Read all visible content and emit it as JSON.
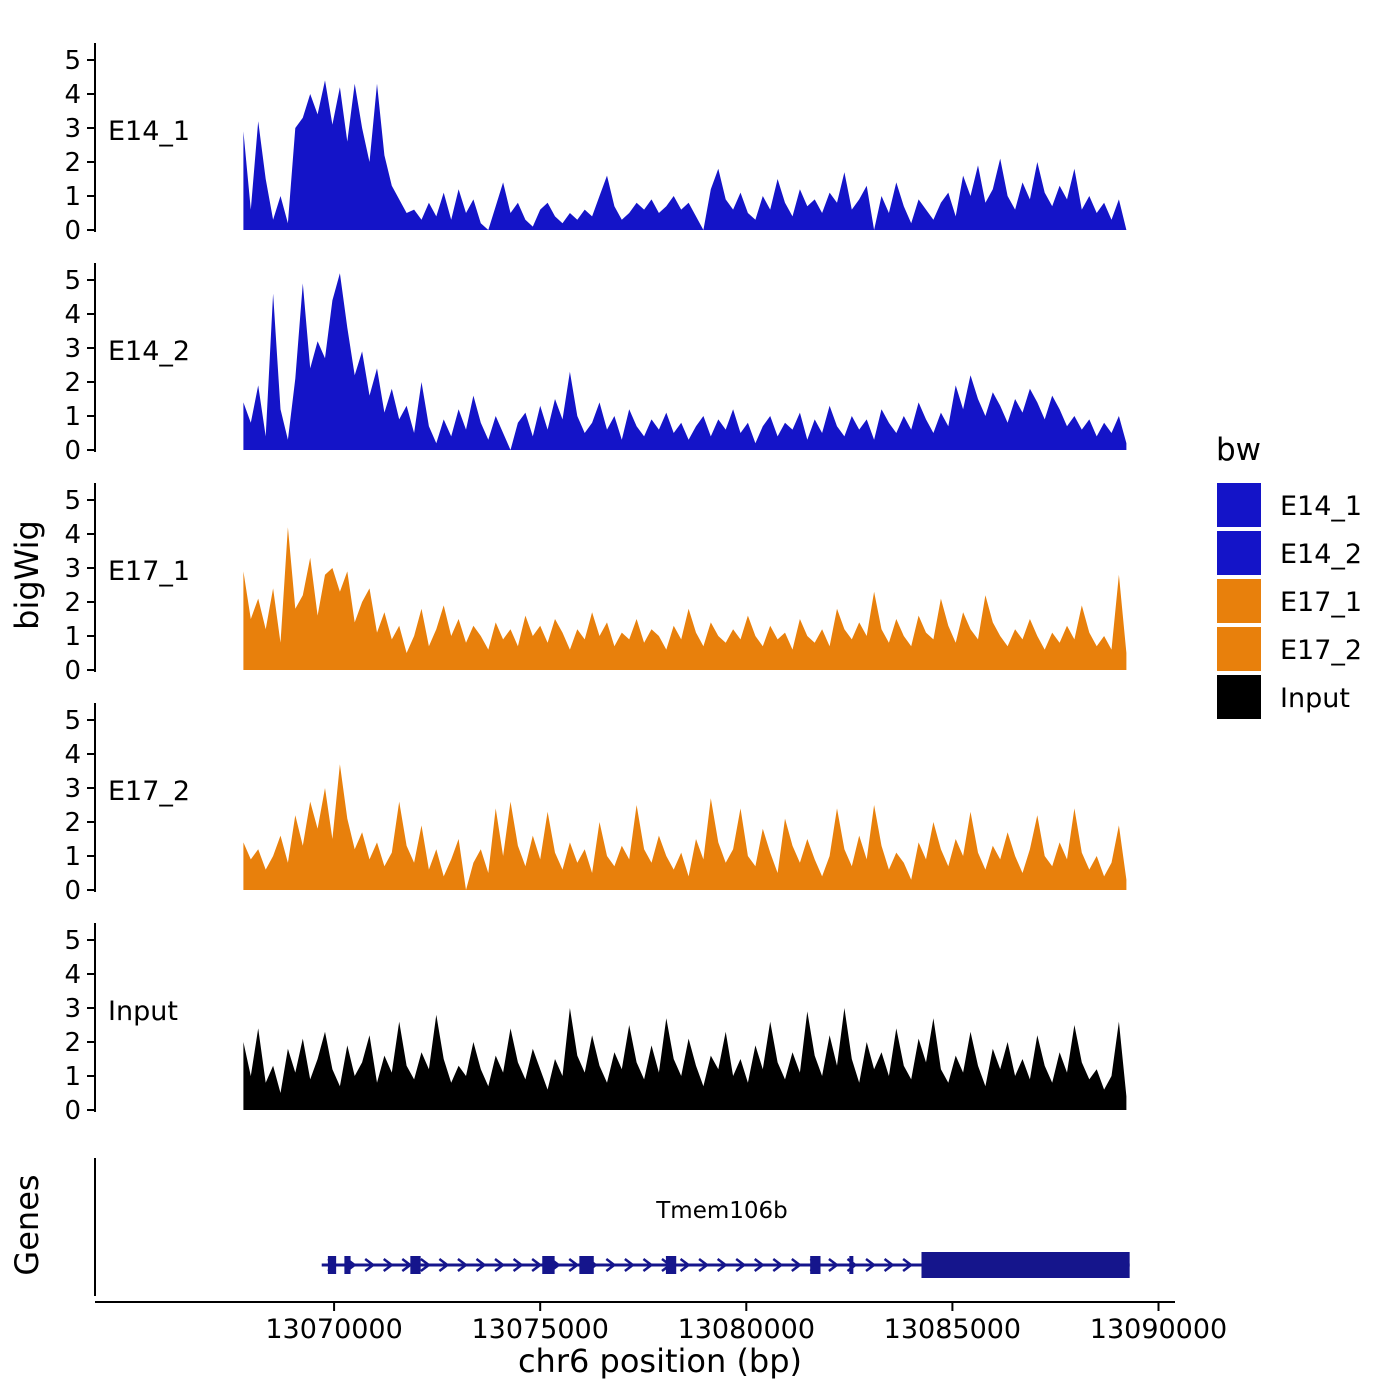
{
  "labels": {
    "ylabel": "bigWig",
    "genes_axis": "Genes",
    "xlabel": "chr6 position (bp)"
  },
  "colors": {
    "blue": "#1414C8",
    "orange": "#E8800C",
    "black": "#000000",
    "gene": "#15158C",
    "axis": "#000000"
  },
  "legend": {
    "title": "bw",
    "entries": [
      {
        "label": "E14_1",
        "color": "#1414C8"
      },
      {
        "label": "E14_2",
        "color": "#1414C8"
      },
      {
        "label": "E17_1",
        "color": "#E8800C"
      },
      {
        "label": "E17_2",
        "color": "#E8800C"
      },
      {
        "label": "Input",
        "color": "#000000"
      }
    ]
  },
  "x_axis": {
    "tick_values": [
      13070000,
      13075000,
      13080000,
      13085000,
      13090000
    ],
    "tick_labels": [
      "13070000",
      "13075000",
      "13080000",
      "13085000",
      "13090000"
    ]
  },
  "y_axis": {
    "tick_values": [
      0,
      1,
      2,
      3,
      4,
      5
    ],
    "tick_labels": [
      "0",
      "1",
      "2",
      "3",
      "4",
      "5"
    ]
  },
  "chart_data": {
    "type": "area",
    "title": "",
    "xlabel": "chr6 position (bp)",
    "ylabel": "bigWig",
    "x_units": "bp",
    "x_start": 13067800,
    "x_step": 180,
    "xlim": [
      13064200,
      13090400
    ],
    "ylim": [
      0,
      5.5
    ],
    "grid": false,
    "legend_position": "right",
    "tracks": [
      {
        "name": "E14_1",
        "color": "#1414C8",
        "values": [
          2.9,
          0.6,
          3.2,
          1.5,
          0.3,
          1.0,
          0.2,
          3.0,
          3.3,
          4.0,
          3.4,
          4.4,
          3.1,
          4.2,
          2.6,
          4.3,
          3.0,
          2.0,
          4.3,
          2.2,
          1.3,
          0.9,
          0.5,
          0.6,
          0.3,
          0.8,
          0.4,
          1.1,
          0.3,
          1.2,
          0.5,
          0.9,
          0.2,
          0.0,
          0.7,
          1.4,
          0.5,
          0.8,
          0.3,
          0.1,
          0.6,
          0.8,
          0.4,
          0.2,
          0.5,
          0.3,
          0.6,
          0.4,
          1.0,
          1.6,
          0.7,
          0.3,
          0.5,
          0.8,
          0.6,
          0.9,
          0.5,
          0.7,
          1.0,
          0.6,
          0.8,
          0.4,
          0.0,
          1.2,
          1.8,
          0.9,
          0.6,
          1.1,
          0.5,
          0.3,
          1.0,
          0.6,
          1.5,
          0.8,
          0.4,
          1.2,
          0.7,
          0.9,
          0.5,
          1.1,
          0.8,
          1.7,
          0.6,
          0.9,
          1.3,
          0.0,
          1.0,
          0.5,
          1.4,
          0.7,
          0.2,
          0.9,
          0.6,
          0.3,
          0.8,
          1.1,
          0.4,
          1.6,
          1.0,
          1.9,
          0.8,
          1.2,
          2.1,
          1.0,
          0.6,
          1.4,
          0.9,
          2.0,
          1.1,
          0.7,
          1.3,
          0.9,
          1.8,
          0.6,
          1.0,
          0.5,
          0.8,
          0.3,
          0.9,
          0.0
        ]
      },
      {
        "name": "E14_2",
        "color": "#1414C8",
        "values": [
          1.4,
          0.8,
          1.9,
          0.4,
          4.6,
          1.2,
          0.3,
          2.1,
          4.9,
          2.4,
          3.2,
          2.7,
          4.4,
          5.2,
          3.6,
          2.2,
          2.9,
          1.6,
          2.4,
          1.1,
          1.8,
          0.9,
          1.3,
          0.5,
          2.0,
          0.7,
          0.2,
          0.9,
          0.4,
          1.2,
          0.6,
          1.6,
          0.8,
          0.3,
          1.0,
          0.5,
          0.0,
          0.8,
          1.1,
          0.4,
          1.3,
          0.6,
          1.5,
          0.9,
          2.3,
          1.0,
          0.5,
          0.8,
          1.4,
          0.6,
          1.0,
          0.3,
          1.2,
          0.7,
          0.4,
          0.9,
          0.6,
          1.1,
          0.5,
          0.8,
          0.3,
          0.7,
          1.0,
          0.4,
          0.9,
          0.6,
          1.2,
          0.5,
          0.8,
          0.2,
          0.7,
          1.0,
          0.4,
          0.8,
          0.6,
          1.1,
          0.3,
          0.9,
          0.5,
          1.3,
          0.7,
          0.4,
          1.0,
          0.6,
          0.9,
          0.3,
          1.2,
          0.8,
          0.5,
          1.0,
          0.6,
          1.4,
          0.9,
          0.5,
          1.1,
          0.7,
          1.9,
          1.2,
          2.2,
          1.5,
          1.0,
          1.7,
          1.3,
          0.8,
          1.5,
          1.1,
          1.8,
          1.4,
          0.9,
          1.6,
          1.2,
          0.7,
          1.0,
          0.6,
          0.9,
          0.4,
          0.8,
          0.5,
          1.0,
          0.2
        ]
      },
      {
        "name": "E17_1",
        "color": "#E8800C",
        "values": [
          2.9,
          1.5,
          2.1,
          1.2,
          2.4,
          0.8,
          4.2,
          1.8,
          2.2,
          3.3,
          1.6,
          2.8,
          3.0,
          2.3,
          2.9,
          1.4,
          2.0,
          2.4,
          1.1,
          1.7,
          0.9,
          1.3,
          0.5,
          1.0,
          1.8,
          0.7,
          1.2,
          1.9,
          1.0,
          1.5,
          0.8,
          1.3,
          1.0,
          0.6,
          1.4,
          0.9,
          1.2,
          0.7,
          1.6,
          1.0,
          1.3,
          0.8,
          1.5,
          1.1,
          0.6,
          1.2,
          0.9,
          1.7,
          1.0,
          1.4,
          0.7,
          1.1,
          0.9,
          1.5,
          0.8,
          1.2,
          1.0,
          0.6,
          1.3,
          0.9,
          1.8,
          1.1,
          0.7,
          1.4,
          1.0,
          0.8,
          1.2,
          0.9,
          1.6,
          1.0,
          0.7,
          1.3,
          0.9,
          1.1,
          0.6,
          1.5,
          1.0,
          0.8,
          1.2,
          0.7,
          1.8,
          1.2,
          0.9,
          1.4,
          1.0,
          2.3,
          1.2,
          0.8,
          1.5,
          1.0,
          0.7,
          1.6,
          1.1,
          0.9,
          2.1,
          1.3,
          0.8,
          1.7,
          1.2,
          0.9,
          2.2,
          1.4,
          1.0,
          0.7,
          1.2,
          0.9,
          1.5,
          1.0,
          0.6,
          1.1,
          0.8,
          1.3,
          0.9,
          1.9,
          1.1,
          0.7,
          1.0,
          0.6,
          2.8,
          0.5
        ]
      },
      {
        "name": "E17_2",
        "color": "#E8800C",
        "values": [
          1.4,
          0.9,
          1.2,
          0.6,
          1.0,
          1.6,
          0.8,
          2.2,
          1.3,
          2.6,
          1.8,
          3.0,
          1.5,
          3.7,
          2.1,
          1.2,
          1.7,
          0.9,
          1.4,
          0.7,
          1.1,
          2.6,
          1.3,
          0.8,
          1.9,
          0.6,
          1.2,
          0.4,
          0.9,
          1.5,
          0.0,
          0.8,
          1.2,
          0.5,
          2.4,
          1.0,
          2.6,
          1.3,
          0.7,
          1.6,
          0.9,
          2.3,
          1.1,
          0.6,
          1.4,
          0.8,
          1.2,
          0.5,
          2.0,
          1.0,
          0.7,
          1.3,
          0.9,
          2.5,
          1.2,
          0.8,
          1.6,
          1.0,
          0.6,
          1.1,
          0.4,
          1.5,
          0.9,
          2.7,
          1.4,
          0.8,
          1.2,
          2.4,
          1.0,
          0.7,
          1.8,
          1.1,
          0.5,
          2.1,
          1.3,
          0.8,
          1.5,
          0.9,
          0.4,
          1.0,
          2.4,
          1.2,
          0.7,
          1.6,
          0.9,
          2.5,
          1.3,
          0.6,
          1.1,
          0.8,
          0.3,
          1.4,
          0.9,
          2.0,
          1.2,
          0.7,
          1.5,
          1.0,
          2.3,
          1.1,
          0.6,
          1.3,
          0.9,
          1.7,
          1.0,
          0.5,
          1.2,
          2.2,
          1.0,
          0.7,
          1.4,
          0.9,
          2.4,
          1.1,
          0.6,
          1.0,
          0.4,
          0.8,
          1.9,
          0.3
        ]
      },
      {
        "name": "Input",
        "color": "#000000",
        "values": [
          2.0,
          1.0,
          2.4,
          0.8,
          1.3,
          0.5,
          1.8,
          1.1,
          2.1,
          0.9,
          1.5,
          2.3,
          1.2,
          0.7,
          1.9,
          1.0,
          1.4,
          2.2,
          0.8,
          1.6,
          1.1,
          2.6,
          1.3,
          0.9,
          1.7,
          1.2,
          2.8,
          1.5,
          0.8,
          1.3,
          1.0,
          2.0,
          1.2,
          0.7,
          1.6,
          1.1,
          2.4,
          1.4,
          0.9,
          1.8,
          1.2,
          0.6,
          1.5,
          1.0,
          3.0,
          1.6,
          1.1,
          2.2,
          1.3,
          0.8,
          1.7,
          1.2,
          2.5,
          1.4,
          0.9,
          1.9,
          1.1,
          2.7,
          1.5,
          1.0,
          2.1,
          1.3,
          0.7,
          1.6,
          1.2,
          2.3,
          1.0,
          1.5,
          0.8,
          1.9,
          1.2,
          2.6,
          1.4,
          0.9,
          1.7,
          1.1,
          2.9,
          1.6,
          1.0,
          2.2,
          1.3,
          3.0,
          1.5,
          0.8,
          2.0,
          1.2,
          1.7,
          1.0,
          2.4,
          1.3,
          0.9,
          2.1,
          1.4,
          2.7,
          1.2,
          0.8,
          1.6,
          1.1,
          2.3,
          1.3,
          0.7,
          1.8,
          1.2,
          2.0,
          1.0,
          1.5,
          0.9,
          2.2,
          1.3,
          0.8,
          1.7,
          1.1,
          2.5,
          1.4,
          0.9,
          1.2,
          0.6,
          1.0,
          2.6,
          0.4
        ]
      }
    ],
    "gene_track": {
      "label": "Genes",
      "gene": {
        "name": "Tmem106b",
        "chrom": "chr6",
        "start": 13069700,
        "end": 13089300,
        "strand": "+",
        "exons": [
          [
            13069850,
            13070050
          ],
          [
            13070250,
            13070400
          ],
          [
            13071850,
            13072100
          ],
          [
            13075050,
            13075350
          ],
          [
            13075950,
            13076300
          ],
          [
            13078050,
            13078300
          ],
          [
            13081550,
            13081800
          ],
          [
            13082500,
            13082580
          ]
        ],
        "thick_exon": [
          13084250,
          13089300
        ]
      }
    }
  }
}
